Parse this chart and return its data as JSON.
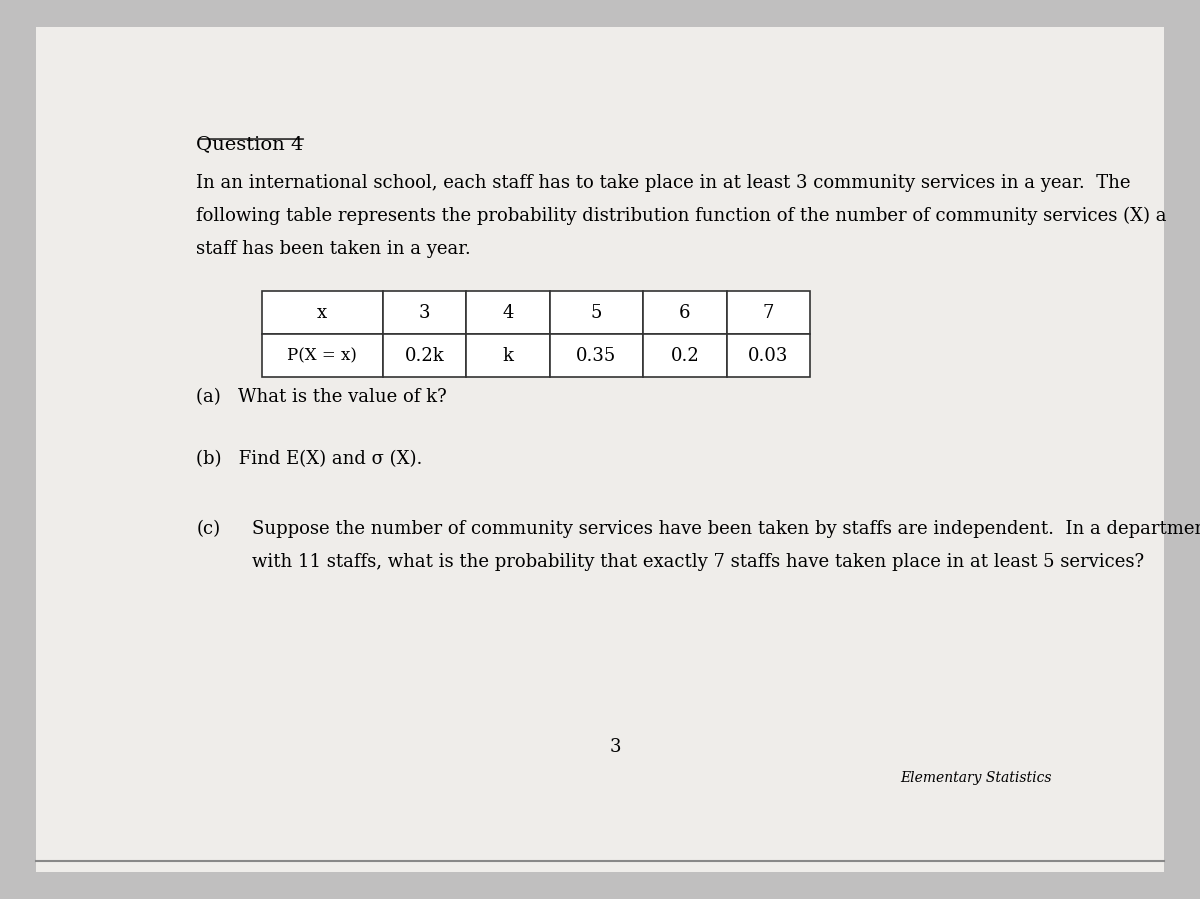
{
  "background_color": "#c0bfbf",
  "page_color": "#efedea",
  "title": "Question 4",
  "paragraph1_line1": "In an international school, each staff has to take place in at least 3 community services in a year.  The",
  "paragraph1_line2": "following table represents the probability distribution function of the number of community services (X) a",
  "paragraph1_line3": "staff has been taken in a year.",
  "table_headers": [
    "x",
    "3",
    "4",
    "5",
    "6",
    "7"
  ],
  "table_row_label": "P(X = x)",
  "table_row_values": [
    "0.2k",
    "k",
    "0.35",
    "0.2",
    "0.03"
  ],
  "part_a": "(a)   What is the value of k?",
  "part_b_prefix": "(b)   Find E(X) and ",
  "part_b_sigma": "σ",
  "part_b_suffix": " (X).",
  "part_c_label": "(c)",
  "part_c_line1": "Suppose the number of community services have been taken by staffs are independent.  In a department",
  "part_c_line2": "with 11 staffs, what is the probability that exactly 7 staffs have taken place in at least 5 services?",
  "page_number": "3",
  "footer": "Elementary Statistics",
  "font_size_title": 14,
  "font_size_body": 13,
  "font_size_table": 13,
  "font_size_footer": 10
}
